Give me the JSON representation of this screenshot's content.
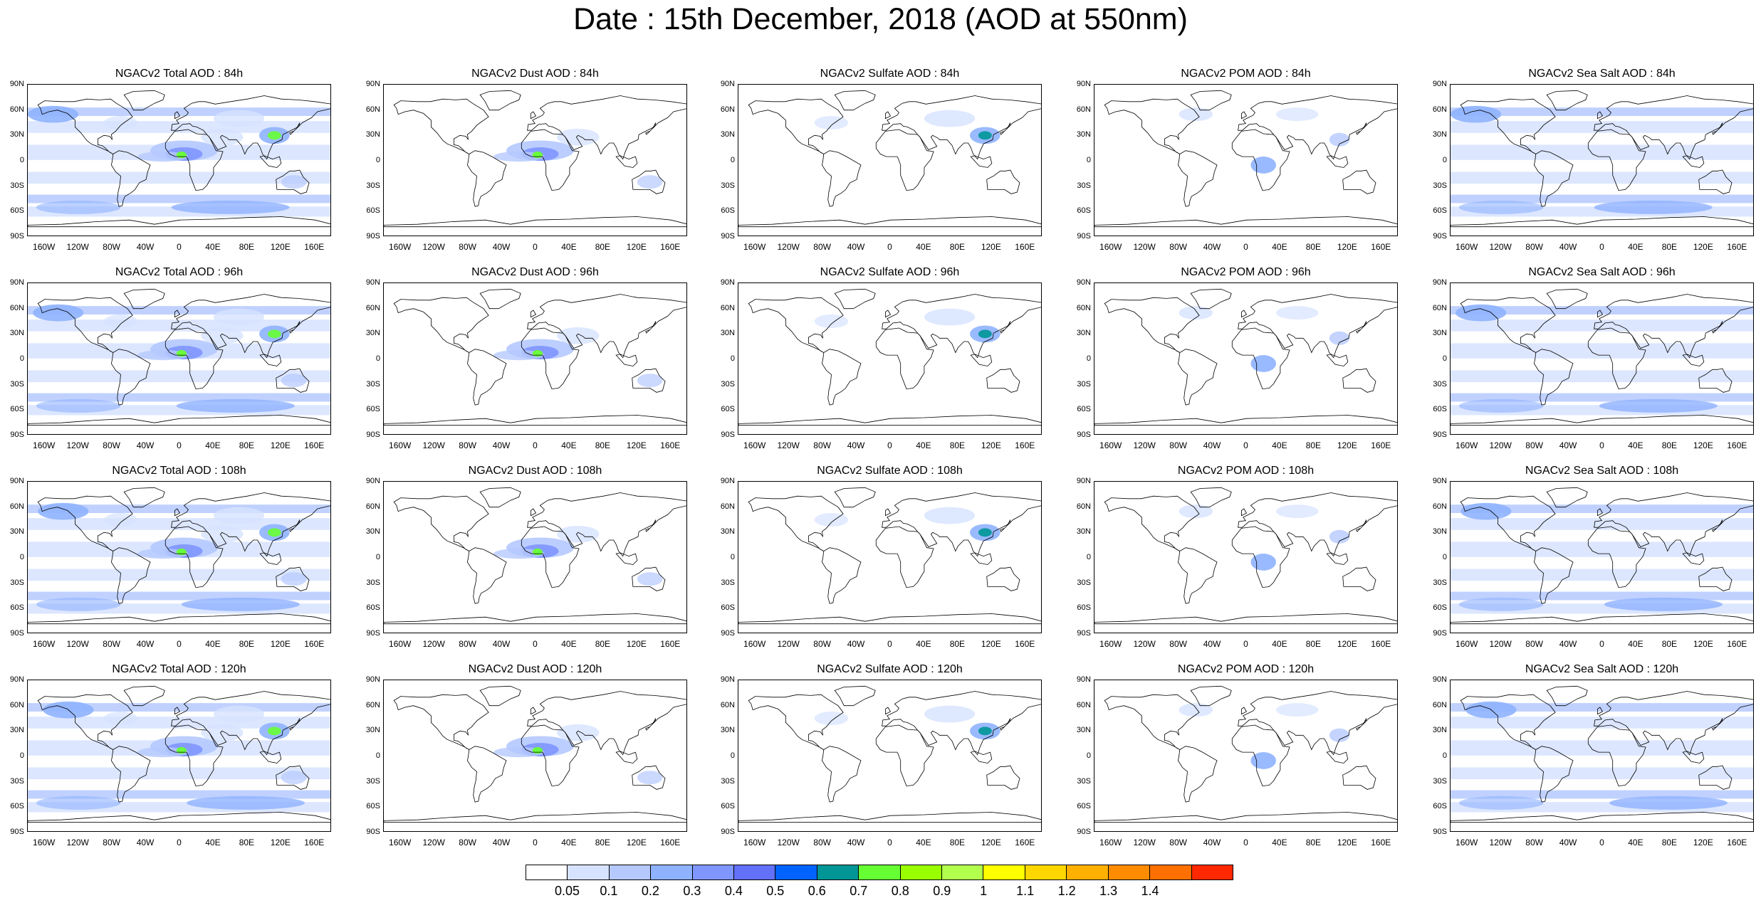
{
  "title": "Date : 15th December, 2018 (AOD at 550nm)",
  "lat_ticks": [
    "90N",
    "60N",
    "30N",
    "0",
    "30S",
    "60S",
    "90S"
  ],
  "lon_ticks": [
    "160W",
    "120W",
    "80W",
    "40W",
    "0",
    "40E",
    "80E",
    "120E",
    "160E"
  ],
  "panels": [
    {
      "title": "NGACv2 Total AOD : 84h",
      "species": "total"
    },
    {
      "title": "NGACv2 Dust AOD : 84h",
      "species": "dust"
    },
    {
      "title": "NGACv2 Sulfate AOD : 84h",
      "species": "sulfate"
    },
    {
      "title": "NGACv2 POM AOD : 84h",
      "species": "pom"
    },
    {
      "title": "NGACv2 Sea Salt AOD : 84h",
      "species": "seasalt"
    },
    {
      "title": "NGACv2 Total AOD : 96h",
      "species": "total"
    },
    {
      "title": "NGACv2 Dust AOD : 96h",
      "species": "dust"
    },
    {
      "title": "NGACv2 Sulfate AOD : 96h",
      "species": "sulfate"
    },
    {
      "title": "NGACv2 POM AOD : 96h",
      "species": "pom"
    },
    {
      "title": "NGACv2 Sea Salt AOD : 96h",
      "species": "seasalt"
    },
    {
      "title": "NGACv2 Total AOD : 108h",
      "species": "total"
    },
    {
      "title": "NGACv2 Dust AOD : 108h",
      "species": "dust"
    },
    {
      "title": "NGACv2 Sulfate AOD : 108h",
      "species": "sulfate"
    },
    {
      "title": "NGACv2 POM AOD : 108h",
      "species": "pom"
    },
    {
      "title": "NGACv2 Sea Salt AOD : 108h",
      "species": "seasalt"
    },
    {
      "title": "NGACv2 Total AOD : 120h",
      "species": "total"
    },
    {
      "title": "NGACv2 Dust AOD : 120h",
      "species": "dust"
    },
    {
      "title": "NGACv2 Sulfate AOD : 120h",
      "species": "sulfate"
    },
    {
      "title": "NGACv2 POM AOD : 120h",
      "species": "pom"
    },
    {
      "title": "NGACv2 Sea Salt  AOD : 120h",
      "species": "seasalt"
    }
  ],
  "colorbar": {
    "colors": [
      "#ffffff",
      "#d6e2ff",
      "#b5c9ff",
      "#8fb2ff",
      "#7f96ff",
      "#6370f8",
      "#0063ff",
      "#009696",
      "#66ff33",
      "#99ff00",
      "#b2ff4d",
      "#ffff00",
      "#ffd700",
      "#ffb000",
      "#ff8c00",
      "#ff7000",
      "#ff2800"
    ],
    "labels": [
      "0.05",
      "0.1",
      "0.2",
      "0.3",
      "0.4",
      "0.5",
      "0.6",
      "0.7",
      "0.8",
      "0.9",
      "1",
      "1.1",
      "1.2",
      "1.3",
      "1.4"
    ]
  }
}
